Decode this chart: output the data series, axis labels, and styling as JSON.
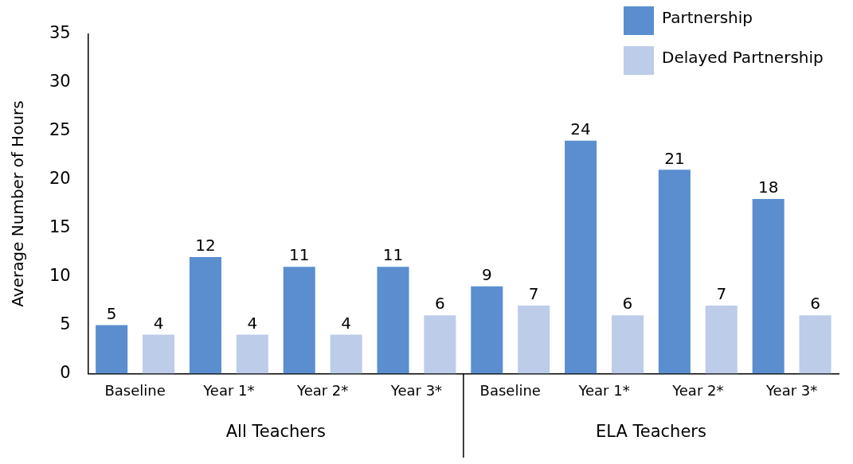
{
  "chart_data": {
    "type": "bar",
    "ylabel": "Average Number of Hours",
    "categories": [
      "Baseline",
      "Year 1*",
      "Year 2*",
      "Year 3*",
      "Baseline",
      "Year 1*",
      "Year 2*",
      "Year 3*"
    ],
    "series": [
      {
        "name": "Partnership",
        "color": "#5a8ecf",
        "values": [
          5,
          12,
          11,
          11,
          9,
          24,
          21,
          18
        ]
      },
      {
        "name": "Delayed Partnership",
        "color": "#bccce9",
        "values": [
          4,
          4,
          4,
          6,
          7,
          6,
          7,
          6
        ]
      }
    ],
    "annotations": [
      "All Teachers",
      "ELA Teachers"
    ],
    "ylim": [
      0,
      35
    ],
    "yticks": [
      0,
      5,
      10,
      15,
      20,
      25,
      30,
      35
    ],
    "grid": false,
    "legend": "top right",
    "data_labels": true
  }
}
